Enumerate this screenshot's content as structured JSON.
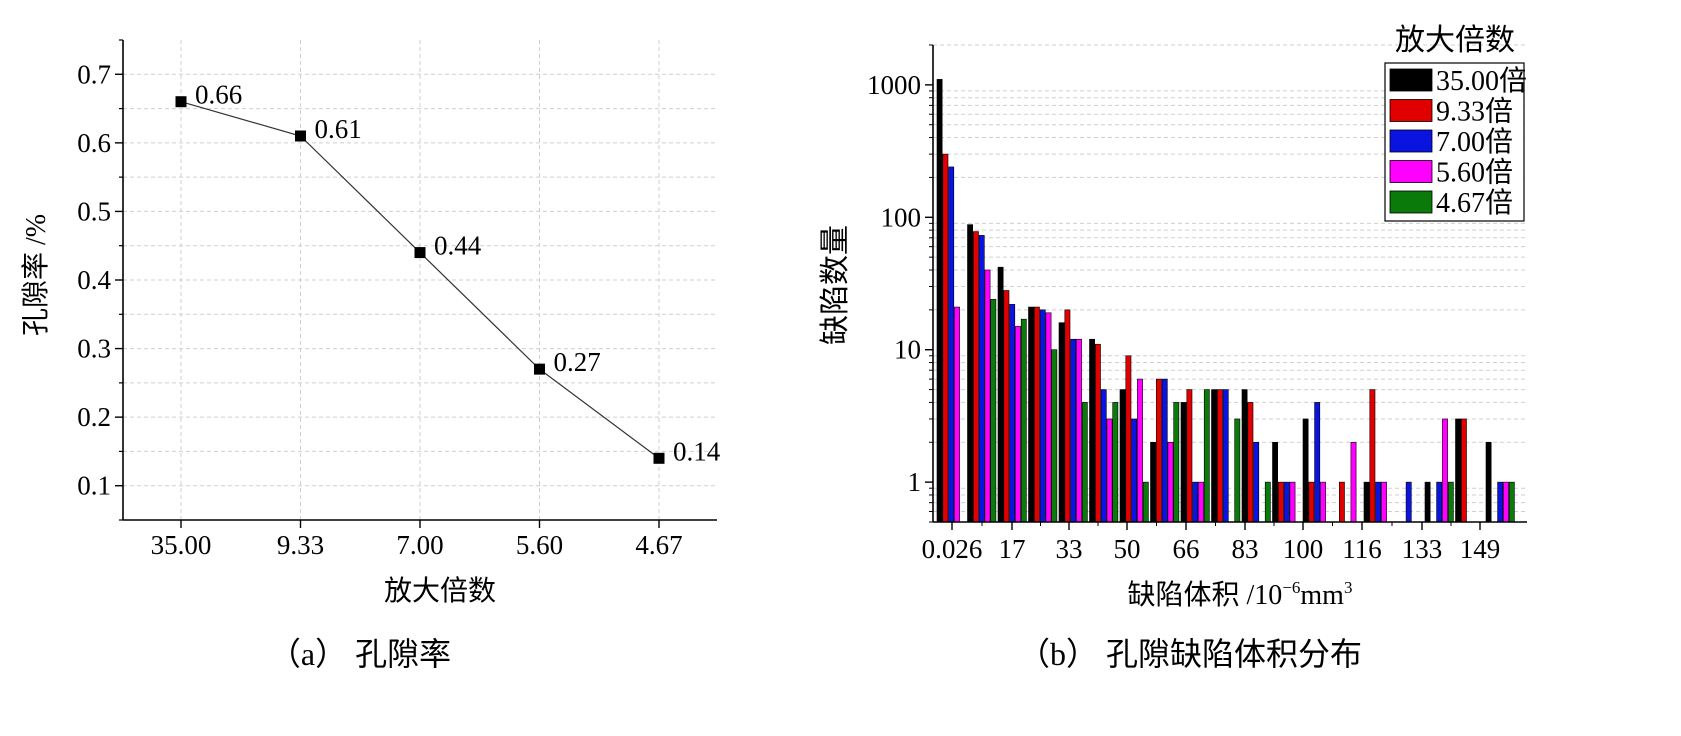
{
  "chart_data": [
    {
      "type": "line",
      "caption": "（a） 孔隙率",
      "xlabel": "放大倍数",
      "ylabel": "孔隙率 /%",
      "categories": [
        "35.00",
        "9.33",
        "7.00",
        "5.60",
        "4.67"
      ],
      "ylim": [
        0.05,
        0.75
      ],
      "yticks": [
        "0.1",
        "0.2",
        "0.3",
        "0.4",
        "0.5",
        "0.6",
        "0.7"
      ],
      "grid": true,
      "series": [
        {
          "values": [
            0.66,
            0.61,
            0.44,
            0.27,
            0.14
          ],
          "labels": [
            "0.66",
            "0.61",
            "0.44",
            "0.27",
            "0.14"
          ]
        }
      ]
    },
    {
      "type": "bar",
      "caption": "（b） 孔隙缺陷体积分布",
      "xlabel_main": "缺陷体积 /10",
      "xlabel_sup": "−6",
      "xlabel_unit": "mm",
      "xlabel_unit_sup": "3",
      "ylabel": "缺陷数量",
      "yscale": "log",
      "ylim": [
        0.5,
        2000
      ],
      "yticks": [
        "1",
        "10",
        "100",
        "1000"
      ],
      "xticks": [
        "0.026",
        "17",
        "33",
        "50",
        "66",
        "83",
        "100",
        "116",
        "133",
        "149"
      ],
      "legend_title": "放大倍数",
      "legend_position": "top-right",
      "grid": true,
      "series": [
        {
          "name": "35.00倍",
          "color": "#000000",
          "values": [
            1100,
            88,
            42,
            21,
            16,
            12,
            5,
            2,
            4,
            5,
            5,
            2,
            3,
            null,
            1,
            null,
            1,
            3,
            2
          ]
        },
        {
          "name": "9.33倍",
          "color": "#e00000",
          "values": [
            300,
            78,
            28,
            21,
            20,
            11,
            9,
            6,
            5,
            5,
            4,
            1,
            1,
            1,
            5,
            null,
            null,
            3,
            null
          ]
        },
        {
          "name": "7.00倍",
          "color": "#0a14e0",
          "values": [
            240,
            73,
            22,
            20,
            12,
            5,
            3,
            6,
            1,
            5,
            2,
            1,
            4,
            null,
            1,
            1,
            1,
            null,
            1
          ]
        },
        {
          "name": "5.60倍",
          "color": "#ff00ff",
          "values": [
            21,
            40,
            15,
            19,
            12,
            3,
            6,
            2,
            1,
            null,
            null,
            1,
            1,
            2,
            1,
            null,
            3,
            null,
            1
          ]
        },
        {
          "name": "4.67倍",
          "color": "#0a7a0a",
          "values": [
            null,
            24,
            17,
            10,
            4,
            4,
            1,
            4,
            5,
            3,
            1,
            null,
            null,
            null,
            null,
            null,
            1,
            null,
            1
          ]
        }
      ]
    }
  ]
}
